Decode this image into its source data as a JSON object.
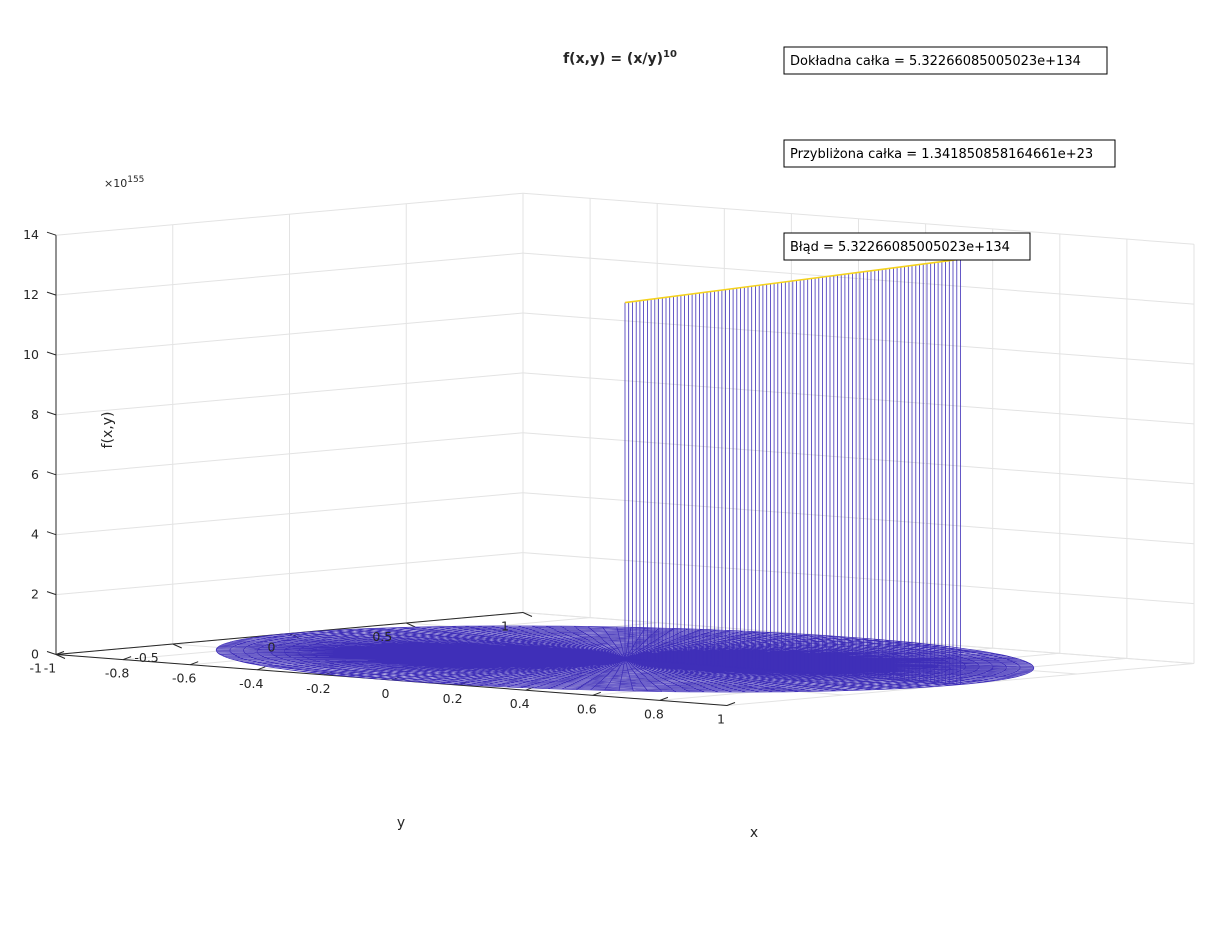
{
  "chart_data": {
    "type": "surface",
    "title": {
      "prefix": "f(x,y) = (x/y)",
      "exponent": "10"
    },
    "function": "(x/y)^10",
    "domain": "unit disk x^2 + y^2 <= 1, polar mesh",
    "xlabel": "x",
    "ylabel": "y",
    "zlabel": "f(x,y)",
    "xlim": [
      -1,
      1
    ],
    "ylim": [
      -1,
      1
    ],
    "zlim": [
      0,
      14
    ],
    "z_multiplier": {
      "prefix": "×10",
      "exponent": "155"
    },
    "x_ticks": [
      "-1",
      "-0.8",
      "-0.6",
      "-0.4",
      "-0.2",
      "0",
      "0.2",
      "0.4",
      "0.6",
      "0.8",
      "1"
    ],
    "y_ticks": [
      "-1",
      "-0.5",
      "0",
      "0.5",
      "1"
    ],
    "z_ticks": [
      "0",
      "2",
      "4",
      "6",
      "8",
      "10",
      "12",
      "14"
    ],
    "spike": {
      "x_from": 0,
      "x_to": 1,
      "y": 0,
      "z_at_x0": 11.9,
      "z_at_x1": 14.2,
      "units": "×10^155"
    },
    "grid": true,
    "colors": {
      "mesh": "#3f2fb8",
      "peak_edge": "#f5d21c",
      "axis": "#262626",
      "grid": "#e3e3e3"
    },
    "annotations": [
      "Dokładna całka =  5.32266085005023e+134",
      "Przybliżona całka = 1.341850858164661e+23",
      "Błąd = 5.32266085005023e+134"
    ]
  }
}
